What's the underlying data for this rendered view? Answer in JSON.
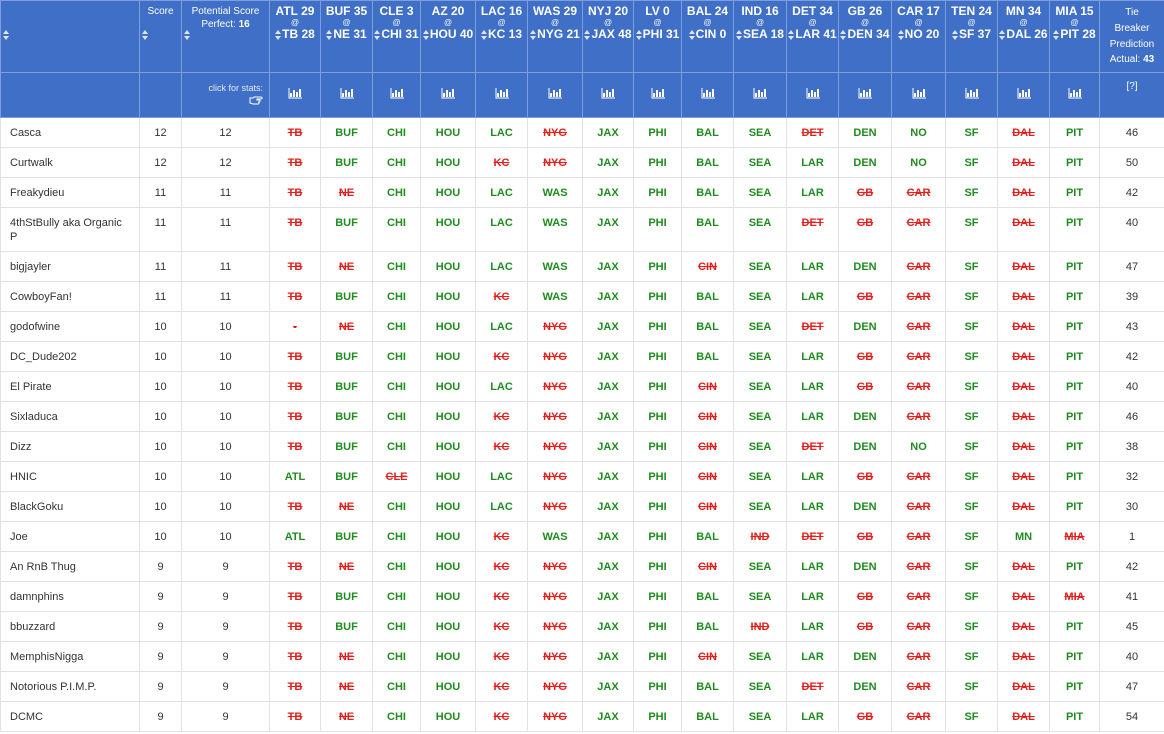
{
  "header": {
    "score": "Score",
    "potential": {
      "title": "Potential Score",
      "perfect_label": "Perfect:",
      "perfect": 16
    },
    "games": [
      {
        "away": "ATL 29",
        "at": "@",
        "home": "TB 28",
        "winner": "ATL"
      },
      {
        "away": "BUF 35",
        "at": "@",
        "home": "NE 31",
        "winner": "BUF"
      },
      {
        "away": "CLE 3",
        "at": "@",
        "home": "CHI 31",
        "winner": "CHI"
      },
      {
        "away": "AZ 20",
        "at": "@",
        "home": "HOU 40",
        "winner": "HOU"
      },
      {
        "away": "LAC 16",
        "at": "@",
        "home": "KC 13",
        "winner": "LAC"
      },
      {
        "away": "WAS 29",
        "at": "@",
        "home": "NYG 21",
        "winner": "WAS"
      },
      {
        "away": "NYJ 20",
        "at": "@",
        "home": "JAX 48",
        "winner": "JAX"
      },
      {
        "away": "LV 0",
        "at": "@",
        "home": "PHI 31",
        "winner": "PHI"
      },
      {
        "away": "BAL 24",
        "at": "@",
        "home": "CIN 0",
        "winner": "BAL"
      },
      {
        "away": "IND 16",
        "at": "@",
        "home": "SEA 18",
        "winner": "SEA"
      },
      {
        "away": "DET 34",
        "at": "@",
        "home": "LAR 41",
        "winner": "LAR"
      },
      {
        "away": "GB 26",
        "at": "@",
        "home": "DEN 34",
        "winner": "DEN"
      },
      {
        "away": "CAR 17",
        "at": "@",
        "home": "NO 20",
        "winner": "NO"
      },
      {
        "away": "TEN 24",
        "at": "@",
        "home": "SF 37",
        "winner": "SF"
      },
      {
        "away": "MN 34",
        "at": "@",
        "home": "DAL 26",
        "winner": "MN"
      },
      {
        "away": "MIA 15",
        "at": "@",
        "home": "PIT 28",
        "winner": "PIT"
      }
    ],
    "tiebreaker": {
      "title": "Tie Breaker Prediction",
      "actual_label": "Actual:",
      "actual": 43
    },
    "stats_hint": "click for stats:",
    "help": "[?]"
  },
  "colors": {
    "correct": "#1f8c1f",
    "wrong": "#e5201c",
    "header": "#3f6fc6"
  },
  "rows": [
    {
      "name": "Casca",
      "score": 12,
      "potential": 12,
      "picks": [
        "TB",
        "BUF",
        "CHI",
        "HOU",
        "LAC",
        "NYG",
        "JAX",
        "PHI",
        "BAL",
        "SEA",
        "DET",
        "DEN",
        "NO",
        "SF",
        "DAL",
        "PIT"
      ],
      "tiebreaker": 46
    },
    {
      "name": "Curtwalk",
      "score": 12,
      "potential": 12,
      "picks": [
        "TB",
        "BUF",
        "CHI",
        "HOU",
        "KC",
        "NYG",
        "JAX",
        "PHI",
        "BAL",
        "SEA",
        "LAR",
        "DEN",
        "NO",
        "SF",
        "DAL",
        "PIT"
      ],
      "tiebreaker": 50
    },
    {
      "name": "Freakydieu",
      "score": 11,
      "potential": 11,
      "picks": [
        "TB",
        "NE",
        "CHI",
        "HOU",
        "LAC",
        "WAS",
        "JAX",
        "PHI",
        "BAL",
        "SEA",
        "LAR",
        "GB",
        "CAR",
        "SF",
        "DAL",
        "PIT"
      ],
      "tiebreaker": 42
    },
    {
      "name": "4thStBully aka Organic P",
      "score": 11,
      "potential": 11,
      "picks": [
        "TB",
        "BUF",
        "CHI",
        "HOU",
        "LAC",
        "WAS",
        "JAX",
        "PHI",
        "BAL",
        "SEA",
        "DET",
        "GB",
        "CAR",
        "SF",
        "DAL",
        "PIT"
      ],
      "tiebreaker": 40
    },
    {
      "name": "bigjayler",
      "score": 11,
      "potential": 11,
      "picks": [
        "TB",
        "NE",
        "CHI",
        "HOU",
        "LAC",
        "WAS",
        "JAX",
        "PHI",
        "CIN",
        "SEA",
        "LAR",
        "DEN",
        "CAR",
        "SF",
        "DAL",
        "PIT"
      ],
      "tiebreaker": 47
    },
    {
      "name": "CowboyFan!",
      "score": 11,
      "potential": 11,
      "picks": [
        "TB",
        "BUF",
        "CHI",
        "HOU",
        "KC",
        "WAS",
        "JAX",
        "PHI",
        "BAL",
        "SEA",
        "LAR",
        "GB",
        "CAR",
        "SF",
        "DAL",
        "PIT"
      ],
      "tiebreaker": 39
    },
    {
      "name": "godofwine",
      "score": 10,
      "potential": 10,
      "picks": [
        "-",
        "NE",
        "CHI",
        "HOU",
        "LAC",
        "NYG",
        "JAX",
        "PHI",
        "BAL",
        "SEA",
        "DET",
        "DEN",
        "CAR",
        "SF",
        "DAL",
        "PIT"
      ],
      "tiebreaker": 43
    },
    {
      "name": "DC_Dude202",
      "score": 10,
      "potential": 10,
      "picks": [
        "TB",
        "BUF",
        "CHI",
        "HOU",
        "KC",
        "NYG",
        "JAX",
        "PHI",
        "BAL",
        "SEA",
        "LAR",
        "GB",
        "CAR",
        "SF",
        "DAL",
        "PIT"
      ],
      "tiebreaker": 42
    },
    {
      "name": "El Pirate",
      "score": 10,
      "potential": 10,
      "picks": [
        "TB",
        "BUF",
        "CHI",
        "HOU",
        "LAC",
        "NYG",
        "JAX",
        "PHI",
        "CIN",
        "SEA",
        "LAR",
        "GB",
        "CAR",
        "SF",
        "DAL",
        "PIT"
      ],
      "tiebreaker": 40
    },
    {
      "name": "Sixladuca",
      "score": 10,
      "potential": 10,
      "picks": [
        "TB",
        "BUF",
        "CHI",
        "HOU",
        "KC",
        "NYG",
        "JAX",
        "PHI",
        "CIN",
        "SEA",
        "LAR",
        "DEN",
        "CAR",
        "SF",
        "DAL",
        "PIT"
      ],
      "tiebreaker": 46
    },
    {
      "name": "Dizz",
      "score": 10,
      "potential": 10,
      "picks": [
        "TB",
        "BUF",
        "CHI",
        "HOU",
        "KC",
        "NYG",
        "JAX",
        "PHI",
        "CIN",
        "SEA",
        "DET",
        "DEN",
        "NO",
        "SF",
        "DAL",
        "PIT"
      ],
      "tiebreaker": 38
    },
    {
      "name": "HNIC",
      "score": 10,
      "potential": 10,
      "picks": [
        "ATL",
        "BUF",
        "CLE",
        "HOU",
        "LAC",
        "NYG",
        "JAX",
        "PHI",
        "CIN",
        "SEA",
        "LAR",
        "GB",
        "CAR",
        "SF",
        "DAL",
        "PIT"
      ],
      "tiebreaker": 32
    },
    {
      "name": "BlackGoku",
      "score": 10,
      "potential": 10,
      "picks": [
        "TB",
        "NE",
        "CHI",
        "HOU",
        "LAC",
        "NYG",
        "JAX",
        "PHI",
        "CIN",
        "SEA",
        "LAR",
        "DEN",
        "CAR",
        "SF",
        "DAL",
        "PIT"
      ],
      "tiebreaker": 30
    },
    {
      "name": "Joe",
      "score": 10,
      "potential": 10,
      "picks": [
        "ATL",
        "BUF",
        "CHI",
        "HOU",
        "KC",
        "WAS",
        "JAX",
        "PHI",
        "BAL",
        "IND",
        "DET",
        "GB",
        "CAR",
        "SF",
        "MN",
        "MIA"
      ],
      "tiebreaker": 1
    },
    {
      "name": "An RnB Thug",
      "score": 9,
      "potential": 9,
      "picks": [
        "TB",
        "NE",
        "CHI",
        "HOU",
        "KC",
        "NYG",
        "JAX",
        "PHI",
        "CIN",
        "SEA",
        "LAR",
        "DEN",
        "CAR",
        "SF",
        "DAL",
        "PIT"
      ],
      "tiebreaker": 42
    },
    {
      "name": "damnphins",
      "score": 9,
      "potential": 9,
      "picks": [
        "TB",
        "BUF",
        "CHI",
        "HOU",
        "KC",
        "NYG",
        "JAX",
        "PHI",
        "BAL",
        "SEA",
        "LAR",
        "GB",
        "CAR",
        "SF",
        "DAL",
        "MIA"
      ],
      "tiebreaker": 41
    },
    {
      "name": "bbuzzard",
      "score": 9,
      "potential": 9,
      "picks": [
        "TB",
        "BUF",
        "CHI",
        "HOU",
        "KC",
        "NYG",
        "JAX",
        "PHI",
        "BAL",
        "IND",
        "LAR",
        "GB",
        "CAR",
        "SF",
        "DAL",
        "PIT"
      ],
      "tiebreaker": 45
    },
    {
      "name": "MemphisNigga",
      "score": 9,
      "potential": 9,
      "picks": [
        "TB",
        "NE",
        "CHI",
        "HOU",
        "KC",
        "NYG",
        "JAX",
        "PHI",
        "CIN",
        "SEA",
        "LAR",
        "DEN",
        "CAR",
        "SF",
        "DAL",
        "PIT"
      ],
      "tiebreaker": 40
    },
    {
      "name": "Notorious P.I.M.P.",
      "score": 9,
      "potential": 9,
      "picks": [
        "TB",
        "NE",
        "CHI",
        "HOU",
        "KC",
        "NYG",
        "JAX",
        "PHI",
        "BAL",
        "SEA",
        "DET",
        "DEN",
        "CAR",
        "SF",
        "DAL",
        "PIT"
      ],
      "tiebreaker": 47
    },
    {
      "name": "DCMC",
      "score": 9,
      "potential": 9,
      "picks": [
        "TB",
        "NE",
        "CHI",
        "HOU",
        "KC",
        "NYG",
        "JAX",
        "PHI",
        "BAL",
        "SEA",
        "LAR",
        "GB",
        "CAR",
        "SF",
        "DAL",
        "PIT"
      ],
      "tiebreaker": 54
    }
  ]
}
